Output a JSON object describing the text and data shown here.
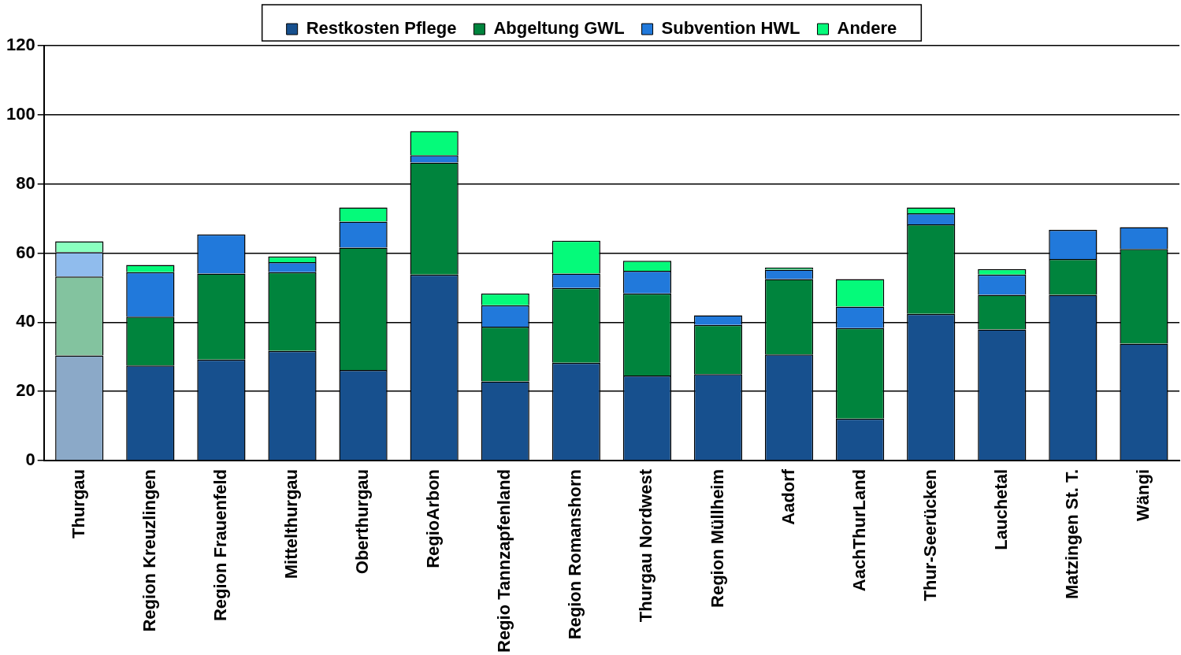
{
  "chart_data": {
    "type": "bar",
    "stacked": true,
    "categories": [
      "Thurgau",
      "Region Kreuzlingen",
      "Region Frauenfeld",
      "Mittelthurgau",
      "Oberthurgau",
      "RegioArbon",
      "Regio Tannzapfenland",
      "Region Romanshorn",
      "Thurgau Nordwest",
      "Region Müllheim",
      "Aadorf",
      "AachThurLand",
      "Thur-Seerücken",
      "Lauchetal",
      "Matzingen St. T.",
      "Wängi"
    ],
    "series": [
      {
        "name": "Restkosten Pflege",
        "color": "#17508e",
        "colors": [
          "#8ba9c8",
          "#17508e",
          "#17508e",
          "#17508e",
          "#17508e",
          "#17508e",
          "#17508e",
          "#17508e",
          "#17508e",
          "#17508e",
          "#17508e",
          "#17508e",
          "#17508e",
          "#17508e",
          "#17508e",
          "#17508e"
        ],
        "values": [
          30.4,
          27.5,
          29.2,
          31.7,
          26.2,
          53.8,
          22.9,
          28.3,
          24.6,
          25.0,
          30.7,
          12.1,
          42.4,
          37.9,
          47.9,
          33.8
        ]
      },
      {
        "name": "Abgeltung GWL",
        "color": "#00843d",
        "colors": [
          "#83c39f",
          "#00843d",
          "#00843d",
          "#00843d",
          "#00843d",
          "#00843d",
          "#00843d",
          "#00843d",
          "#00843d",
          "#00843d",
          "#00843d",
          "#00843d",
          "#00843d",
          "#00843d",
          "#00843d",
          "#00843d"
        ],
        "values": [
          22.8,
          14.1,
          24.9,
          22.8,
          35.4,
          32.4,
          15.8,
          21.6,
          23.7,
          14.2,
          21.8,
          26.2,
          25.9,
          10.0,
          10.4,
          27.4
        ]
      },
      {
        "name": "Subvention HWL",
        "color": "#2179db",
        "colors": [
          "#90bced",
          "#2179db",
          "#2179db",
          "#2179db",
          "#2179db",
          "#2179db",
          "#2179db",
          "#2179db",
          "#2179db",
          "#2179db",
          "#2179db",
          "#2179db",
          "#2179db",
          "#2179db",
          "#2179db",
          "#2179db"
        ],
        "values": [
          7.1,
          12.9,
          11.3,
          2.9,
          7.5,
          2.1,
          6.2,
          4.2,
          6.6,
          2.8,
          2.7,
          6.2,
          3.2,
          5.9,
          8.4,
          6.3
        ]
      },
      {
        "name": "Andere",
        "color": "#05fa7a",
        "colors": [
          "#8affbf",
          "#05fa7a",
          "#05fa7a",
          "#05fa7a",
          "#05fa7a",
          "#05fa7a",
          "#05fa7a",
          "#05fa7a",
          "#05fa7a",
          "#05fa7a",
          "#05fa7a",
          "#05fa7a",
          "#05fa7a",
          "#05fa7a",
          "#05fa7a",
          "#05fa7a"
        ],
        "values": [
          3.1,
          2.1,
          0,
          1.6,
          4.1,
          7.0,
          3.4,
          9.5,
          2.9,
          0,
          0.6,
          8.0,
          1.7,
          1.6,
          0,
          0
        ]
      }
    ],
    "ylim": [
      0,
      120
    ],
    "yticks": [
      0,
      20,
      40,
      60,
      80,
      100,
      120
    ],
    "grid": "y",
    "legend": "top"
  }
}
